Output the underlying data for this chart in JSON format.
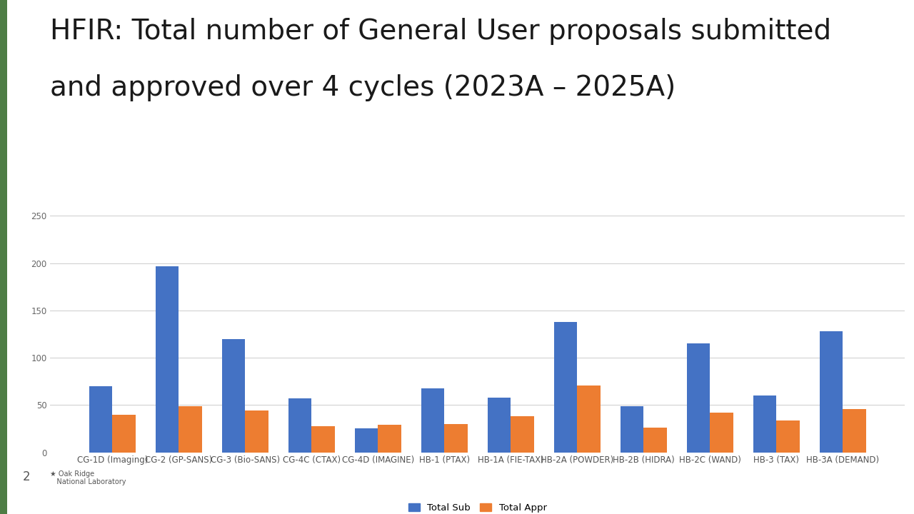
{
  "title_line1": "HFIR: Total number of General User proposals submitted",
  "title_line2": "and approved over 4 cycles (2023A – 2025A)",
  "categories": [
    "CG-1D (Imaging)",
    "CG-2 (GP-SANS)",
    "CG-3 (Bio-SANS)",
    "CG-4C (CTAX)",
    "CG-4D (IMAGINE)",
    "HB-1 (PTAX)",
    "HB-1A (FIE-TAX)",
    "HB-2A (POWDER)",
    "HB-2B (HIDRA)",
    "HB-2C (WAND)",
    "HB-3 (TAX)",
    "HB-3A (DEMAND)"
  ],
  "total_sub": [
    70,
    197,
    120,
    57,
    25,
    68,
    58,
    138,
    49,
    115,
    60,
    128
  ],
  "total_appr": [
    40,
    49,
    44,
    28,
    29,
    30,
    38,
    71,
    26,
    42,
    34,
    46
  ],
  "bar_color_sub": "#4472C4",
  "bar_color_appr": "#ED7D31",
  "ylim": [
    0,
    250
  ],
  "yticks": [
    0,
    50,
    100,
    150,
    200,
    250
  ],
  "legend_sub": "Total Sub",
  "legend_appr": "Total Appr",
  "background_color": "#FFFFFF",
  "green_bar_color": "#4E7D45",
  "title_fontsize": 28,
  "tick_fontsize": 8.5,
  "legend_fontsize": 9.5,
  "bar_width": 0.35
}
